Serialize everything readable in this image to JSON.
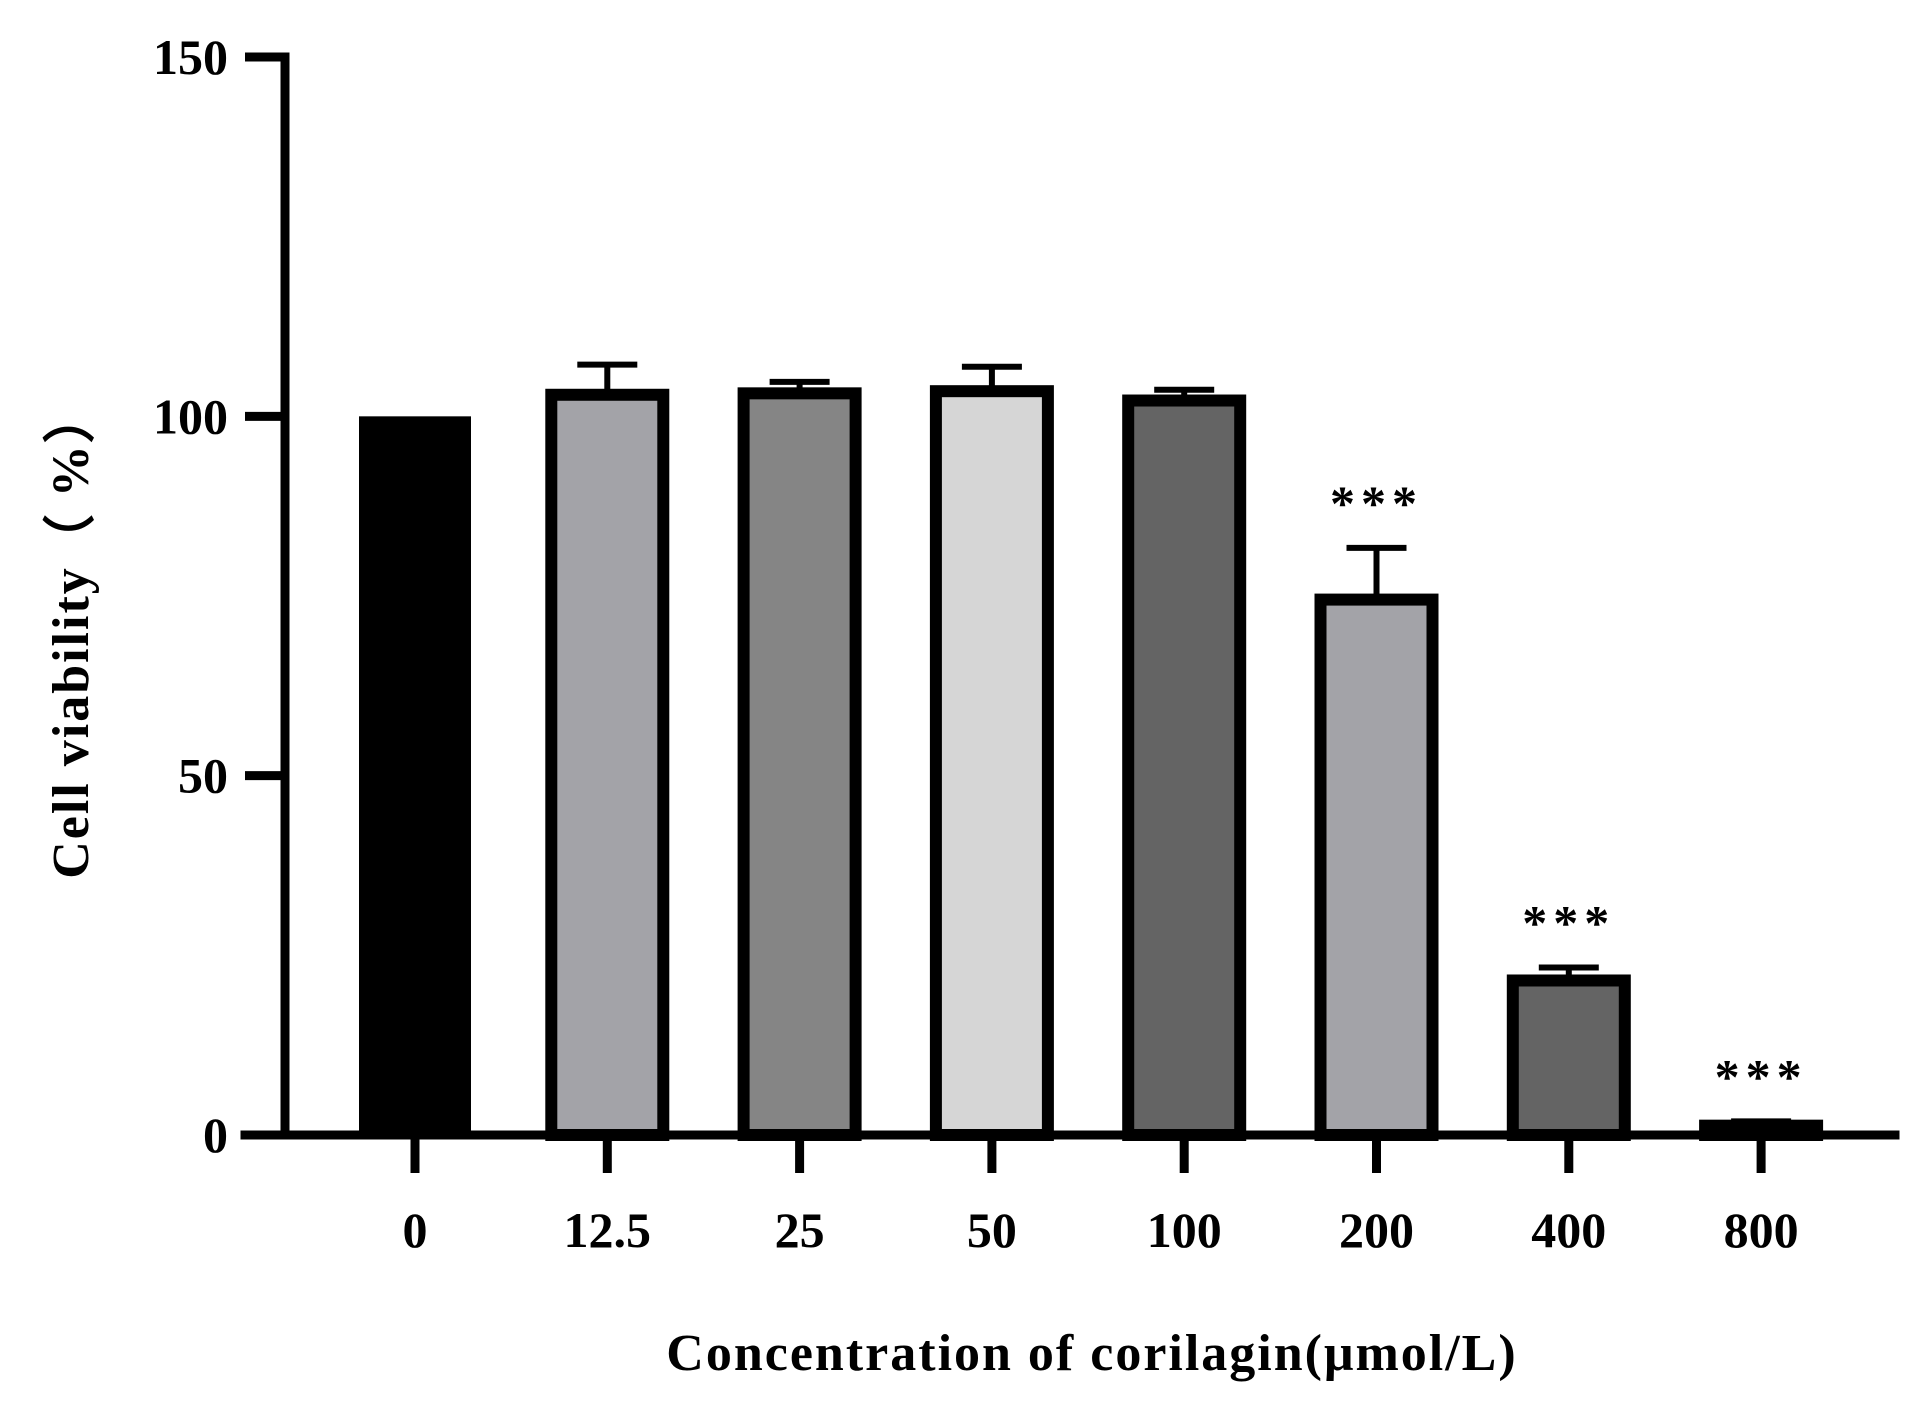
{
  "chart_data": {
    "type": "bar",
    "title": "",
    "xlabel": "Concentration of corilagin(μmol/L)",
    "ylabel": "Cell viability（ %）",
    "ylim": [
      0,
      150
    ],
    "yticks": [
      0,
      50,
      100,
      150
    ],
    "categories": [
      "0",
      "12.5",
      "25",
      "50",
      "100",
      "200",
      "400",
      "800"
    ],
    "values": [
      100,
      103,
      103.2,
      103.5,
      102.2,
      74.5,
      21.5,
      1.3
    ],
    "errors": [
      0,
      4.2,
      1.6,
      3.4,
      1.5,
      7.2,
      1.8,
      0.6
    ],
    "significance": [
      "",
      "",
      "",
      "",
      "",
      "***",
      "***",
      "***"
    ],
    "colors": [
      "#000000",
      "#a3a3a8",
      "#858585",
      "#d6d6d6",
      "#646464",
      "#a3a3a8",
      "#646464",
      "#9a9a9a"
    ],
    "outline_color": "#000000",
    "grid": false,
    "legend": "none"
  }
}
